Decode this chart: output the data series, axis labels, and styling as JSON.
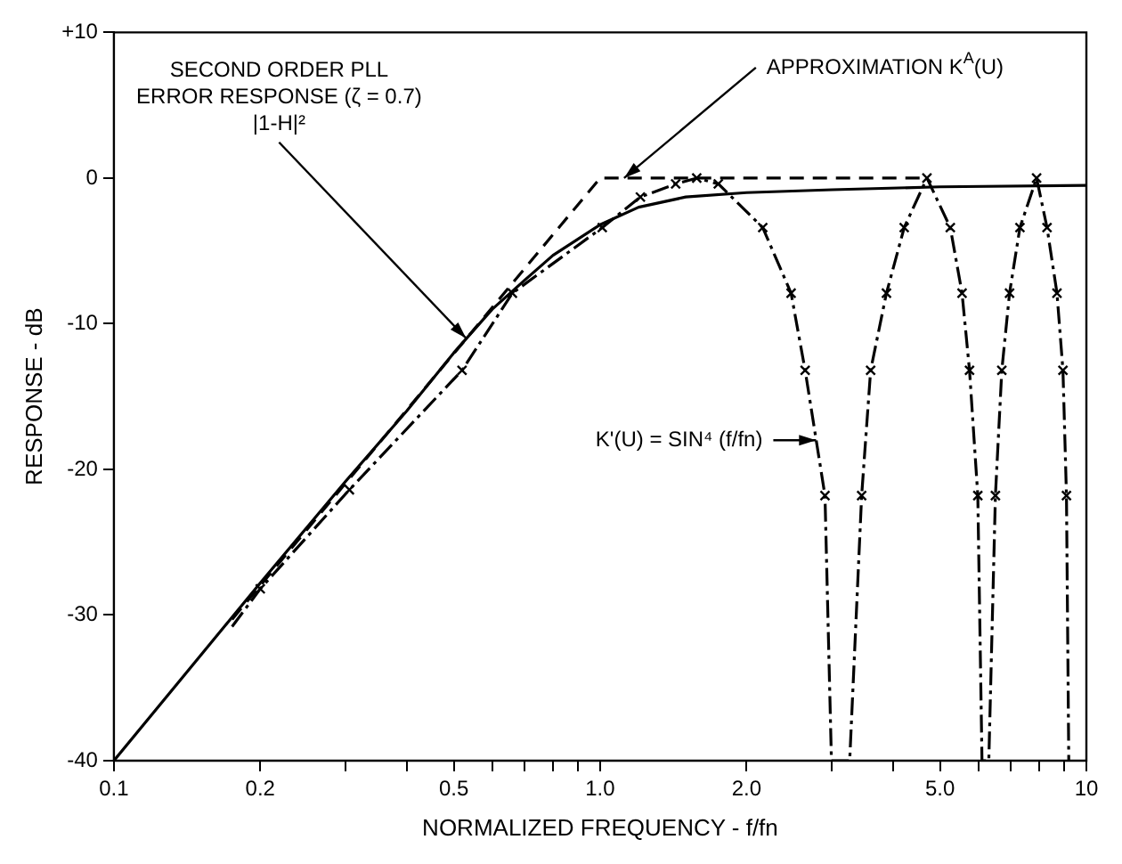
{
  "chart_data": {
    "type": "line",
    "xlabel": "NORMALIZED FREQUENCY - f/fn",
    "ylabel": "RESPONSE - dB",
    "log": "x",
    "grid": false,
    "legend": false,
    "xlim": [
      0.1,
      10
    ],
    "ylim": [
      -40,
      10
    ],
    "xticks": [
      {
        "value": 0.1,
        "label": "0.1"
      },
      {
        "value": 0.2,
        "label": "0.2"
      },
      {
        "value": 0.3,
        "label": null
      },
      {
        "value": 0.4,
        "label": null
      },
      {
        "value": 0.5,
        "label": "0.5"
      },
      {
        "value": 0.6,
        "label": null
      },
      {
        "value": 0.7,
        "label": null
      },
      {
        "value": 0.8,
        "label": null
      },
      {
        "value": 0.9,
        "label": null
      },
      {
        "value": 1,
        "label": "1.0"
      },
      {
        "value": 2,
        "label": "2.0"
      },
      {
        "value": 3,
        "label": null
      },
      {
        "value": 4,
        "label": null
      },
      {
        "value": 5,
        "label": "5.0"
      },
      {
        "value": 6,
        "label": null
      },
      {
        "value": 7,
        "label": null
      },
      {
        "value": 8,
        "label": null
      },
      {
        "value": 9,
        "label": null
      },
      {
        "value": 10,
        "label": "10"
      }
    ],
    "yticks": [
      -40,
      -30,
      -20,
      -10,
      0,
      {
        "value": 10,
        "label": "+10"
      }
    ],
    "series": [
      {
        "type": "line",
        "color": "#000000",
        "line_style": "solid",
        "marker": "none",
        "x": [
          0.1,
          0.2,
          0.3,
          0.4,
          0.5,
          0.6,
          0.7,
          0.8,
          1.0,
          1.2,
          1.5,
          2.0,
          3.0,
          5.0,
          10
        ],
        "values": [
          -40,
          -27.8,
          -20.8,
          -16,
          -12,
          -9,
          -7,
          -5.3,
          -3.2,
          -2,
          -1.3,
          -1.0,
          -0.8,
          -0.6,
          -0.5
        ]
      },
      {
        "type": "line",
        "color": "#000000",
        "line_style": "dashed",
        "marker": "none",
        "x": [
          0.175,
          1.0,
          4.7
        ],
        "values": [
          -30.3,
          0,
          0
        ]
      },
      {
        "type": "line",
        "color": "#000000",
        "line_style": "dotted",
        "marker": "none",
        "x": [
          0.175,
          0.2,
          0.305,
          0.52,
          0.66,
          1.01,
          1.21,
          1.43,
          1.58,
          1.75,
          2.16,
          2.47,
          2.64,
          2.9,
          2.99,
          3.26,
          3.45,
          3.6,
          3.88,
          4.22,
          4.7,
          5.25,
          5.55,
          5.75,
          5.98,
          6.1,
          6.3,
          6.5,
          6.7,
          6.95,
          7.3,
          7.9,
          8.3,
          8.7,
          8.95,
          9.1,
          9.2
        ],
        "values": [
          -30.8,
          -28.2,
          -21.4,
          -13.2,
          -7.9,
          -3.4,
          -1.3,
          -0.4,
          0,
          -0.4,
          -3.4,
          -7.9,
          -13.2,
          -21.8,
          -40,
          -40,
          -21.8,
          -13.2,
          -7.9,
          -3.4,
          0,
          -3.4,
          -7.9,
          -13.2,
          -21.8,
          -40,
          -40,
          -21.8,
          -13.2,
          -7.9,
          -3.4,
          0,
          -3.4,
          -7.9,
          -13.2,
          -21.8,
          -40
        ]
      },
      {
        "type": "scatter",
        "color": "#000000",
        "marker": "cross",
        "x": [
          0.2,
          0.305,
          0.52,
          0.66,
          1.01,
          1.21,
          1.43,
          1.58,
          1.75,
          2.16,
          2.47,
          2.64,
          2.9,
          3.45,
          3.6,
          3.88,
          4.22,
          4.7,
          5.25,
          5.55,
          5.75,
          5.98,
          6.5,
          6.7,
          6.95,
          7.3,
          7.9,
          8.3,
          8.7,
          8.95,
          9.1
        ],
        "values": [
          -28.2,
          -21.4,
          -13.2,
          -7.9,
          -3.4,
          -1.3,
          -0.4,
          0,
          -0.4,
          -3.4,
          -7.9,
          -13.2,
          -21.8,
          -21.8,
          -13.2,
          -7.9,
          -3.4,
          0,
          -3.4,
          -7.9,
          -13.2,
          -21.8,
          -21.8,
          -13.2,
          -7.9,
          -3.4,
          0,
          -3.4,
          -7.9,
          -13.2,
          -21.8
        ]
      }
    ],
    "annotations": [
      {
        "text": "SECOND ORDER PLL\nERROR RESPONSE (ζ = 0.7)\n|1-H|²",
        "x": 0.53,
        "y": -11
      },
      {
        "text": "APPROXIMATION K$^{A}$(U)",
        "x": 1.12,
        "y": 0
      },
      {
        "text": "K'(U) = SIN⁴ (f/fn)",
        "x": 2.78,
        "y": -18
      }
    ]
  }
}
